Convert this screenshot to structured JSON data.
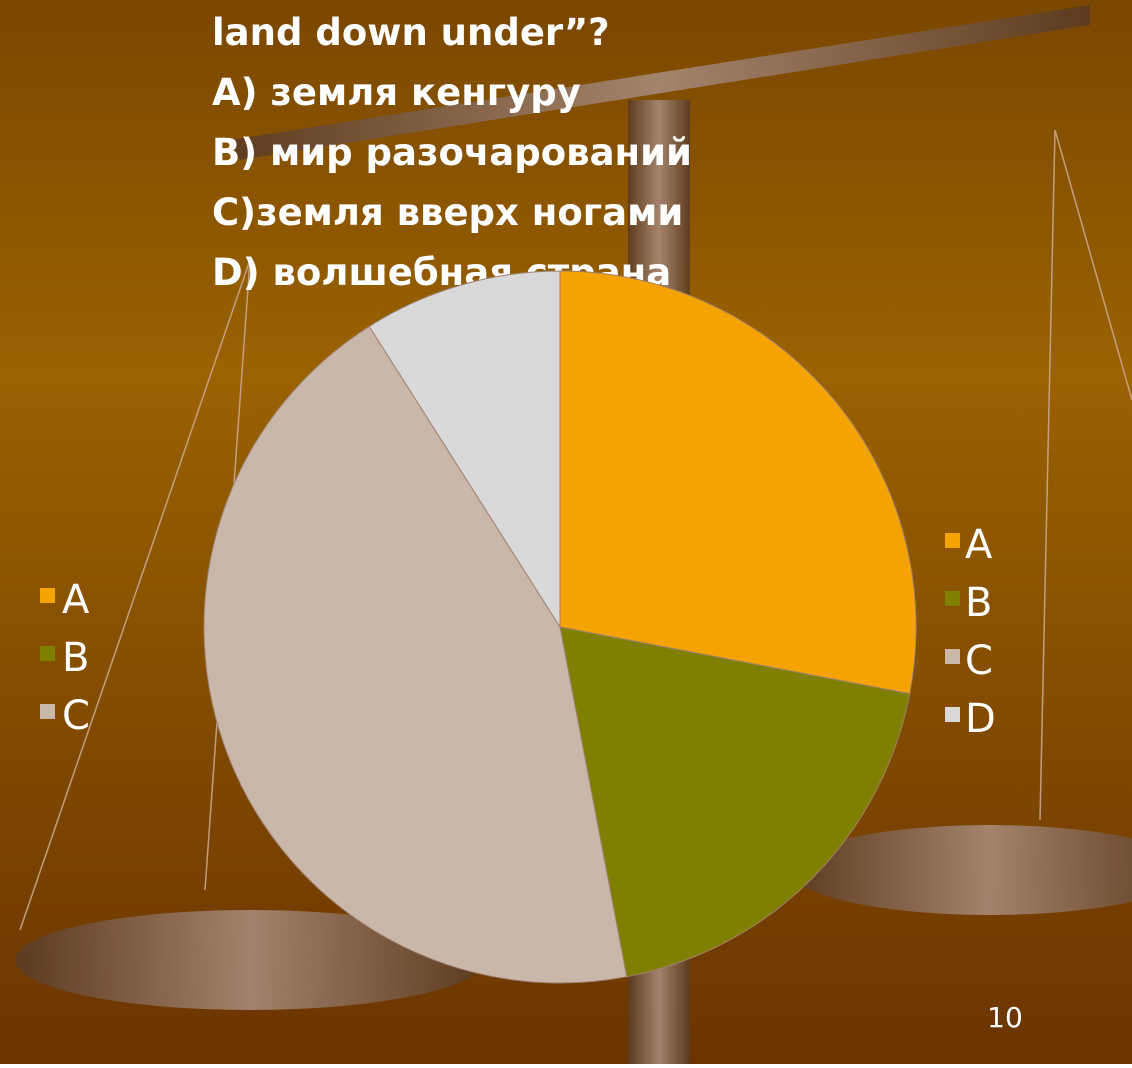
{
  "question": {
    "lines": [
      "land down under”?",
      "A) земля кенгуру",
      "B) мир разочарований",
      "C)земля вверх ногами",
      "D) волшебная страна"
    ]
  },
  "chart_data": {
    "type": "pie",
    "categories": [
      "A",
      "B",
      "C",
      "D"
    ],
    "values": [
      28,
      19,
      44,
      9
    ],
    "colors": [
      "#f5a300",
      "#808000",
      "#c9b8aa",
      "#d9d9d9"
    ],
    "legend": "right"
  },
  "left_legend": {
    "labels": [
      "A",
      "B",
      "C"
    ],
    "colors": [
      "#f5a300",
      "#808000",
      "#c9b8aa"
    ]
  },
  "page_number": "10"
}
